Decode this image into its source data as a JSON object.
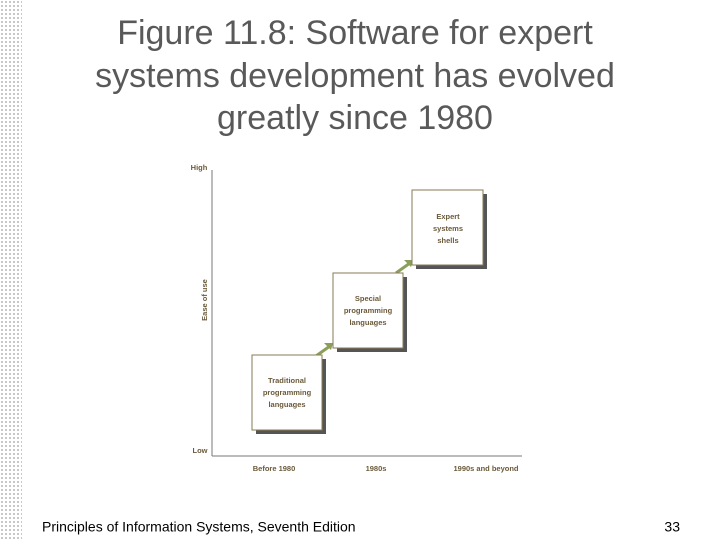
{
  "title": [
    "Figure 11.8: Software for expert",
    "systems development has evolved",
    "greatly since 1980"
  ],
  "figure": {
    "y_axis": {
      "label": "Ease of use",
      "high": "High",
      "low": "Low"
    },
    "x_axis": [
      "Before 1980",
      "1980s",
      "1990s and beyond"
    ],
    "boxes": [
      {
        "lines": [
          "Traditional",
          "programming",
          "languages"
        ]
      },
      {
        "lines": [
          "Special",
          "programming",
          "languages"
        ]
      },
      {
        "lines": [
          "Expert",
          "systems",
          "shells"
        ]
      }
    ]
  },
  "footer": {
    "text": "Principles of Information Systems, Seventh Edition",
    "page": "33"
  }
}
